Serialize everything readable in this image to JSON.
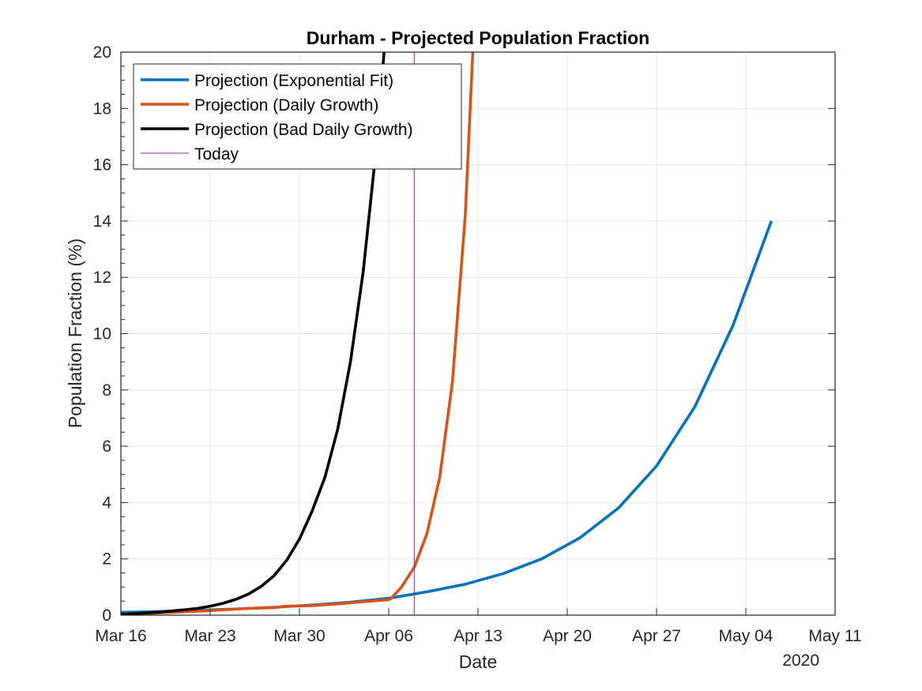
{
  "chart_data": {
    "type": "line",
    "title": "Durham - Projected Population Fraction",
    "xlabel": "Date",
    "ylabel": "Population Fraction (%)",
    "year_label": "2020",
    "xlim": [
      "2020-03-16",
      "2020-05-11"
    ],
    "ylim": [
      0,
      20
    ],
    "x_ticks": [
      {
        "date": "2020-03-16",
        "label": "Mar 16"
      },
      {
        "date": "2020-03-23",
        "label": "Mar 23"
      },
      {
        "date": "2020-03-30",
        "label": "Mar 30"
      },
      {
        "date": "2020-04-06",
        "label": "Apr 06"
      },
      {
        "date": "2020-04-13",
        "label": "Apr 13"
      },
      {
        "date": "2020-04-20",
        "label": "Apr 20"
      },
      {
        "date": "2020-04-27",
        "label": "Apr 27"
      },
      {
        "date": "2020-05-04",
        "label": "May 04"
      },
      {
        "date": "2020-05-11",
        "label": "May 11"
      }
    ],
    "y_ticks": [
      0,
      2,
      4,
      6,
      8,
      10,
      12,
      14,
      16,
      18,
      20
    ],
    "grid": true,
    "legend": "top-left",
    "series": [
      {
        "name": "Projection (Exponential Fit)",
        "color": "#0072bd",
        "points": [
          [
            "2020-03-16",
            0.1
          ],
          [
            "2020-03-19",
            0.13
          ],
          [
            "2020-03-22",
            0.17
          ],
          [
            "2020-03-25",
            0.22
          ],
          [
            "2020-03-28",
            0.28
          ],
          [
            "2020-03-31",
            0.36
          ],
          [
            "2020-04-03",
            0.46
          ],
          [
            "2020-04-06",
            0.6
          ],
          [
            "2020-04-09",
            0.83
          ],
          [
            "2020-04-12",
            1.1
          ],
          [
            "2020-04-15",
            1.48
          ],
          [
            "2020-04-18",
            2.0
          ],
          [
            "2020-04-21",
            2.75
          ],
          [
            "2020-04-24",
            3.8
          ],
          [
            "2020-04-27",
            5.3
          ],
          [
            "2020-04-30",
            7.4
          ],
          [
            "2020-05-03",
            10.3
          ],
          [
            "2020-05-06",
            14.0
          ]
        ]
      },
      {
        "name": "Projection (Daily Growth)",
        "color": "#d95319",
        "points": [
          [
            "2020-03-16",
            0.03
          ],
          [
            "2020-03-18",
            0.06
          ],
          [
            "2020-03-20",
            0.1
          ],
          [
            "2020-03-22",
            0.14
          ],
          [
            "2020-03-24",
            0.19
          ],
          [
            "2020-03-26",
            0.24
          ],
          [
            "2020-03-28",
            0.27
          ],
          [
            "2020-03-29",
            0.32
          ],
          [
            "2020-03-31",
            0.34
          ],
          [
            "2020-04-02",
            0.4
          ],
          [
            "2020-04-04",
            0.48
          ],
          [
            "2020-04-06",
            0.55
          ],
          [
            "2020-04-06.2",
            0.6
          ],
          [
            "2020-04-07",
            1.0
          ],
          [
            "2020-04-08",
            1.7
          ],
          [
            "2020-04-09",
            2.9
          ],
          [
            "2020-04-10",
            4.9
          ],
          [
            "2020-04-11",
            8.3
          ],
          [
            "2020-04-12",
            14.2
          ],
          [
            "2020-04-13",
            24.0
          ]
        ]
      },
      {
        "name": "Projection (Bad Daily Growth)",
        "color": "#000000",
        "points": [
          [
            "2020-03-16",
            0.03
          ],
          [
            "2020-03-17",
            0.05
          ],
          [
            "2020-03-18",
            0.08
          ],
          [
            "2020-03-19",
            0.11
          ],
          [
            "2020-03-20",
            0.15
          ],
          [
            "2020-03-21",
            0.19
          ],
          [
            "2020-03-22",
            0.24
          ],
          [
            "2020-03-23",
            0.32
          ],
          [
            "2020-03-24",
            0.42
          ],
          [
            "2020-03-25",
            0.56
          ],
          [
            "2020-03-26",
            0.75
          ],
          [
            "2020-03-27",
            1.02
          ],
          [
            "2020-03-28",
            1.4
          ],
          [
            "2020-03-29",
            1.95
          ],
          [
            "2020-03-30",
            2.7
          ],
          [
            "2020-03-31",
            3.7
          ],
          [
            "2020-04-01",
            4.9
          ],
          [
            "2020-04-02",
            6.6
          ],
          [
            "2020-04-03",
            9.0
          ],
          [
            "2020-04-04",
            12.2
          ],
          [
            "2020-04-05",
            16.5
          ],
          [
            "2020-04-06",
            22.0
          ]
        ]
      }
    ],
    "today": {
      "name": "Today",
      "date": "2020-04-08",
      "color": "#7e2f8e"
    }
  }
}
